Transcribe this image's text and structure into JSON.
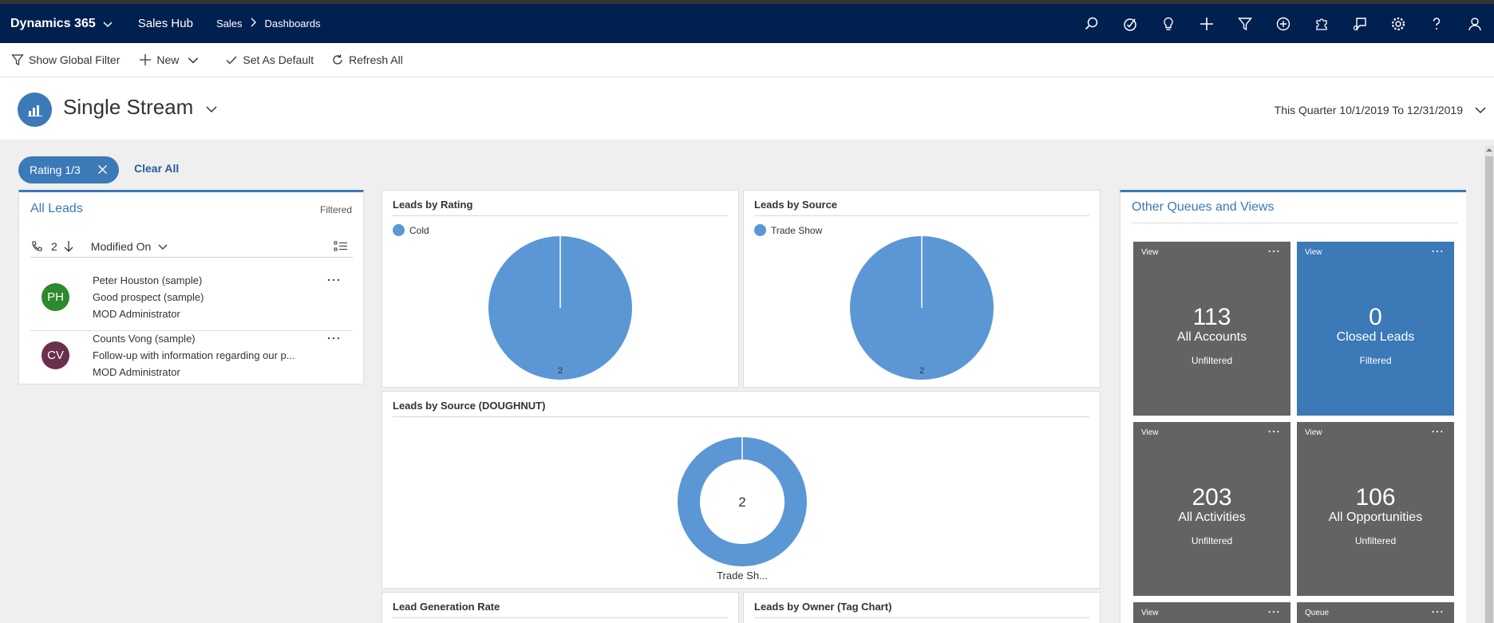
{
  "app": {
    "brand": "Dynamics 365",
    "app_name": "Sales Hub",
    "breadcrumb": [
      "Sales",
      "Dashboards"
    ]
  },
  "top_icons": [
    "search-icon",
    "task-icon",
    "lightbulb-icon",
    "plus-icon",
    "filter-icon",
    "circle-plus-icon",
    "puzzle-icon",
    "chat-icon",
    "gear-icon",
    "help-icon",
    "person-icon"
  ],
  "commands": {
    "global_filter": "Show Global Filter",
    "new": "New",
    "set_default": "Set As Default",
    "refresh": "Refresh All"
  },
  "header": {
    "title": "Single Stream",
    "date_range": "This Quarter 10/1/2019 To 12/31/2019"
  },
  "filter": {
    "pill_label": "Rating 1/3",
    "clear_label": "Clear All"
  },
  "leads": {
    "title": "All Leads",
    "status": "Filtered",
    "count": "2",
    "sort_label": "Modified On",
    "items": [
      {
        "initials": "PH",
        "name": "Peter Houston (sample)",
        "topic": "Good prospect (sample)",
        "owner": "MOD Administrator",
        "color": "#2d8a2d"
      },
      {
        "initials": "CV",
        "name": "Counts Vong (sample)",
        "topic": "Follow-up with information regarding our p...",
        "owner": "MOD Administrator",
        "color": "#6b2f4e"
      }
    ]
  },
  "charts": {
    "rating": {
      "title": "Leads by Rating",
      "legend": "Cold"
    },
    "source": {
      "title": "Leads by Source",
      "legend": "Trade Show"
    },
    "doughnut": {
      "title": "Leads by Source (DOUGHNUT)",
      "center": "2",
      "slice_label": "Trade Sh..."
    },
    "generation": {
      "title": "Lead Generation Rate"
    },
    "owner": {
      "title": "Leads by Owner (Tag Chart)"
    }
  },
  "chart_data": [
    {
      "type": "pie",
      "title": "Leads by Rating",
      "categories": [
        "Cold"
      ],
      "values": [
        2
      ],
      "data_labels": [
        "2"
      ]
    },
    {
      "type": "pie",
      "title": "Leads by Source",
      "categories": [
        "Trade Show"
      ],
      "values": [
        2
      ],
      "data_labels": [
        "2"
      ]
    },
    {
      "type": "pie",
      "title": "Leads by Source (DOUGHNUT)",
      "categories": [
        "Trade Sh..."
      ],
      "values": [
        2
      ],
      "center_label": "2",
      "style": "doughnut"
    }
  ],
  "queues": {
    "title": "Other Queues and Views",
    "tiles": [
      {
        "kind": "View",
        "number": "113",
        "name": "All Accounts",
        "filter": "Unfiltered",
        "color": "#636363"
      },
      {
        "kind": "View",
        "number": "0",
        "name": "Closed Leads",
        "filter": "Filtered",
        "color": "#3b79b7"
      },
      {
        "kind": "View",
        "number": "203",
        "name": "All Activities",
        "filter": "Unfiltered",
        "color": "#636363"
      },
      {
        "kind": "View",
        "number": "106",
        "name": "All Opportunities",
        "filter": "Unfiltered",
        "color": "#636363"
      },
      {
        "kind": "View",
        "color": "#636363"
      },
      {
        "kind": "Queue",
        "color": "#636363"
      }
    ],
    "more_glyph": "⋯"
  },
  "colors": {
    "topbar": "#002050",
    "accent": "#3b79b7",
    "pie": "#5b97d5"
  }
}
